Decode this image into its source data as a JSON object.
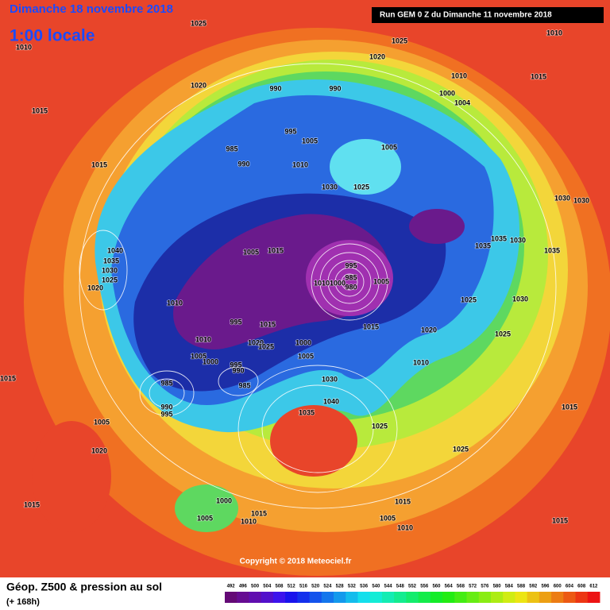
{
  "header": {
    "date": "Dimanche 18 novembre 2018",
    "time": "1:00 locale",
    "run": "Run GEM 0 Z du Dimanche 11 novembre 2018"
  },
  "isobars": [
    1025,
    1010,
    1015,
    1020,
    1025,
    1020,
    1010,
    1010,
    1015,
    1000,
    1004,
    990,
    990,
    985,
    990,
    995,
    1005,
    1010,
    1005,
    1030,
    1025,
    1015,
    1030,
    1030,
    1035,
    1030,
    1035,
    1035,
    1040,
    1035,
    1030,
    1025,
    1020,
    1005,
    1015,
    995,
    985,
    980,
    1010,
    1000,
    1005,
    1025,
    1030,
    1010,
    995,
    1015,
    1015,
    1020,
    1025,
    1010,
    1020,
    1025,
    1000,
    1005,
    1005,
    1000,
    995,
    990,
    985,
    1010,
    985,
    990,
    995,
    1015,
    1030,
    1035,
    1040,
    1025,
    1015,
    1005,
    1020,
    1025,
    1015,
    1000,
    1005,
    1015,
    1010,
    1015,
    1005,
    1010,
    1015
  ],
  "legend": {
    "title": "Géop. Z500 & pression au sol",
    "lead": "(+ 168h)",
    "values": [
      492,
      496,
      500,
      504,
      508,
      512,
      516,
      520,
      524,
      528,
      532,
      536,
      540,
      544,
      548,
      552,
      556,
      560,
      564,
      568,
      572,
      576,
      580,
      584,
      588,
      592,
      596,
      600,
      604,
      608,
      612
    ]
  },
  "copyright": "Copyright © 2018 Meteociel.fr"
}
